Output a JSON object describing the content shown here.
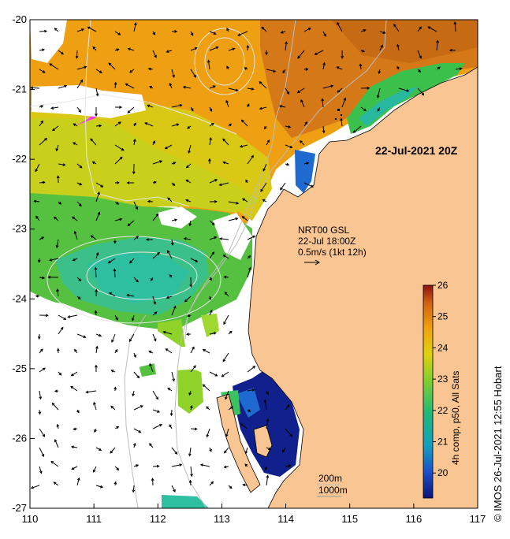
{
  "map": {
    "date_label": "22-Jul-2021 20Z",
    "current_title": "NRT00 GSL",
    "current_time": "22-Jul 18:00Z",
    "current_scale": "0.5m/s (1kt 12h)",
    "depth_label_1": "200m",
    "depth_label_2": "1000m",
    "colorbar_label": "4h comp, p50, All Sats",
    "credit": "© IMOS 26-Jul-2021 12:55 Hobart",
    "colorbar_ticks": [
      "20",
      "21",
      "22",
      "23",
      "24",
      "25",
      "26"
    ],
    "colorbar_min": 19.2,
    "colorbar_max": 26,
    "x_ticks": [
      "110",
      "111",
      "112",
      "113",
      "114",
      "115",
      "116",
      "117"
    ],
    "y_ticks": [
      "-20",
      "-21",
      "-22",
      "-23",
      "-24",
      "-25",
      "-26",
      "-27"
    ],
    "colors": {
      "land": "#f9c592",
      "no_data": "#ffffff",
      "hot": "#c66a14",
      "orange": "#ea9a12",
      "yellow": "#d8cd14",
      "green": "#4cc23a",
      "teal": "#2cbf9a",
      "blue": "#123a9c",
      "magenta": "#ff33ff"
    }
  }
}
